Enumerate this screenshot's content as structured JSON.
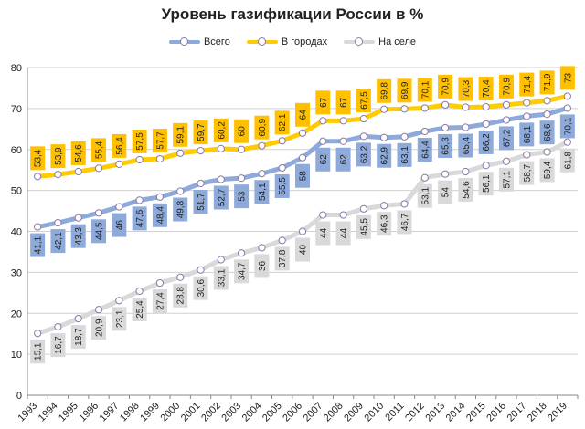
{
  "chart_data": {
    "type": "line",
    "title": "Уровень газификации России в %",
    "xlabel": "",
    "ylabel": "",
    "ylim": [
      0,
      80
    ],
    "yticks": [
      0,
      10,
      20,
      30,
      40,
      50,
      60,
      70,
      80
    ],
    "grid": true,
    "legend_position": "top",
    "x": [
      "1993",
      "1994",
      "1995",
      "1996",
      "1997",
      "1998",
      "1999",
      "2000",
      "2001",
      "2002",
      "2003",
      "2004",
      "2005",
      "2006",
      "2007",
      "2008",
      "2009",
      "2010",
      "2011",
      "2012",
      "2013",
      "2014",
      "2015",
      "2016",
      "2017",
      "2018",
      "2019"
    ],
    "series": [
      {
        "name": "Всего",
        "color": "#8eaadb",
        "label_bg": "#8eaadb",
        "values": [
          41.1,
          42.1,
          43.3,
          44.5,
          46,
          47.6,
          48.4,
          49.8,
          51.7,
          52.7,
          53,
          54.1,
          55.5,
          58,
          62,
          62,
          63.2,
          62.9,
          63.1,
          64.4,
          65.3,
          65.4,
          66.2,
          67.2,
          68.1,
          68.6,
          70.1
        ]
      },
      {
        "name": "В городах",
        "color": "#ffcc00",
        "label_bg": "#ffc000",
        "values": [
          53.4,
          53.9,
          54.6,
          55.4,
          56.4,
          57.5,
          57.7,
          59.1,
          59.7,
          60.2,
          60,
          60.9,
          62.1,
          64,
          67,
          67,
          67.5,
          69.8,
          69.9,
          70.1,
          70.9,
          70.3,
          70.4,
          70.9,
          71.4,
          71.9,
          73
        ]
      },
      {
        "name": "На селе",
        "color": "#d9d9d9",
        "label_bg": "#d9d9d9",
        "values": [
          15.1,
          16.7,
          18.7,
          20.9,
          23.1,
          25.4,
          27.4,
          28.8,
          30.6,
          33.1,
          34.7,
          36,
          37.8,
          40,
          44,
          44,
          45.5,
          46.3,
          46.7,
          53.1,
          54,
          54.6,
          56.1,
          57.1,
          58.7,
          59.4,
          61.8
        ]
      }
    ]
  },
  "colors": {
    "axis": "#888888",
    "grid": "#d0d0d0",
    "marker_stroke": "#8a7aa8",
    "marker_fill": "#ffffff",
    "label_text": "#222222"
  }
}
